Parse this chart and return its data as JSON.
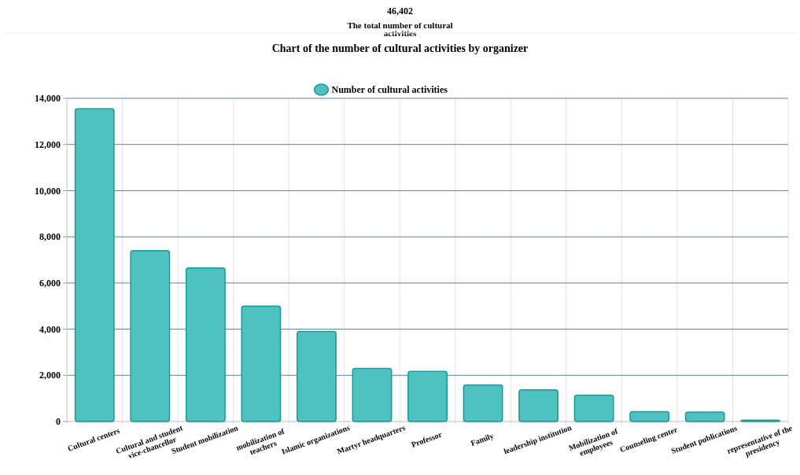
{
  "chart_data": {
    "type": "bar",
    "title": "Chart of the number of cultural activities by organizer",
    "annotations": [
      "46,402",
      "The total number of cultural activities"
    ],
    "categories": [
      "Cultural centers",
      "Cultural and student vice-chancellor",
      "Student mobilization",
      "mobilization of teachers",
      "Islamic organizations",
      "Martyr headquarters",
      "Professor",
      "Family",
      "leadership institution",
      "Mobilization of employees",
      "Counseling center",
      "Student publications",
      "representative of the presidency"
    ],
    "series": [
      {
        "name": "Number of cultural activities",
        "color": "#4fc1c1",
        "values": [
          13550,
          7400,
          6650,
          5000,
          3900,
          2300,
          2170,
          1580,
          1370,
          1140,
          430,
          410,
          60
        ]
      }
    ],
    "ylim": [
      0,
      14000
    ],
    "yticks": [
      0,
      {
        "value": 2000,
        "label": "2,000"
      },
      {
        "value": 4000,
        "label": "4,000"
      },
      {
        "value": 6000,
        "label": "6,000"
      },
      {
        "value": 8000,
        "label": "8,000"
      },
      {
        "value": 10000,
        "label": "10,000"
      },
      {
        "value": 12000,
        "label": "12,000"
      },
      {
        "value": 14000,
        "label": "14,000"
      }
    ],
    "grid": true,
    "legend": "top"
  }
}
